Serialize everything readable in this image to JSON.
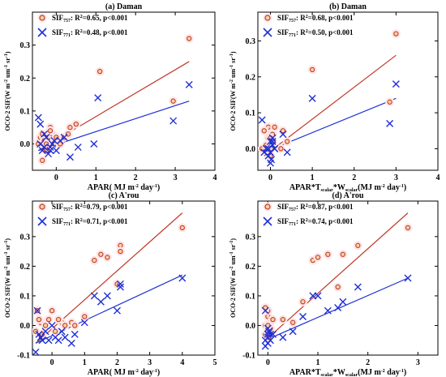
{
  "chart_data": [
    {
      "type": "scatter",
      "title": "(a) Daman",
      "xlabel": "APAR( MJ m⁻² day⁻¹)",
      "ylabel": "OCO-2 SIF(W m⁻² um⁻¹ sr⁻¹)",
      "xlim": [
        -0.6,
        4
      ],
      "ylim": [
        -0.08,
        0.4
      ],
      "xticks": [
        0,
        1,
        2,
        3,
        4
      ],
      "yticks": [
        0.0,
        0.1,
        0.2,
        0.3
      ],
      "legend_position": "top-left",
      "series": [
        {
          "name": "SIF757: R2=0.65, p<0.001",
          "marker": "circle",
          "color": "#c0392b",
          "x": [
            -0.45,
            -0.4,
            -0.35,
            -0.3,
            -0.25,
            -0.2,
            -0.15,
            -0.1,
            -0.05,
            0.0,
            -0.25,
            -0.15,
            0.2,
            0.35,
            0.5,
            0.3,
            1.1,
            2.95,
            3.35,
            0.1,
            -0.35
          ],
          "y": [
            0.0,
            0.02,
            0.03,
            0.01,
            0.0,
            0.02,
            0.05,
            0.03,
            0.0,
            0.02,
            -0.02,
            0.04,
            0.02,
            0.05,
            0.06,
            0.03,
            0.22,
            0.13,
            0.32,
            0.0,
            -0.05
          ],
          "fit": {
            "x": [
              -0.45,
              3.35
            ],
            "y": [
              -0.02,
              0.25
            ]
          }
        },
        {
          "name": "SIF771: R2=0.48, p<0.001",
          "marker": "x",
          "color": "#1f2fd6",
          "x": [
            -0.45,
            -0.4,
            -0.35,
            -0.3,
            -0.25,
            -0.2,
            -0.15,
            -0.1,
            -0.05,
            0.0,
            -0.3,
            -0.15,
            0.1,
            0.35,
            0.55,
            0.95,
            1.05,
            2.95,
            3.35,
            -0.4,
            0.2
          ],
          "y": [
            0.08,
            0.0,
            -0.02,
            -0.01,
            0.02,
            -0.03,
            -0.01,
            0.0,
            0.01,
            -0.02,
            0.03,
            -0.02,
            0.01,
            -0.04,
            -0.01,
            0.0,
            0.14,
            0.07,
            0.18,
            0.06,
            0.02
          ],
          "fit": {
            "x": [
              -0.45,
              3.35
            ],
            "y": [
              -0.02,
              0.13
            ]
          }
        }
      ]
    },
    {
      "type": "scatter",
      "title": "(b) Daman",
      "xlabel": "APAR*Tscalar*Wscalar(MJ m⁻² day⁻¹)",
      "ylabel": "OCO-2 SIF(W m⁻² um⁻¹ sr⁻¹)",
      "xlim": [
        -0.3,
        4
      ],
      "ylim": [
        -0.06,
        0.38
      ],
      "xticks": [
        0,
        1,
        2,
        3,
        4
      ],
      "yticks": [
        0.0,
        0.1,
        0.2,
        0.3
      ],
      "legend_position": "top-left",
      "series": [
        {
          "name": "SIF757: R2=0.68, p<0.001",
          "marker": "circle",
          "color": "#c0392b",
          "x": [
            -0.2,
            -0.1,
            -0.05,
            0.0,
            0.0,
            0.02,
            0.05,
            -0.05,
            0.0,
            0.05,
            0.1,
            0.3,
            0.4,
            0.25,
            1.0,
            2.85,
            3.0,
            -0.15,
            0.0
          ],
          "y": [
            0.0,
            0.01,
            0.03,
            0.02,
            0.05,
            0.0,
            0.04,
            0.06,
            -0.02,
            0.02,
            0.06,
            0.05,
            0.02,
            0.0,
            0.22,
            0.13,
            0.32,
            0.05,
            0.03
          ],
          "fit": {
            "x": [
              -0.15,
              3.0
            ],
            "y": [
              -0.02,
              0.26
            ]
          }
        },
        {
          "name": "SIF771: R2=0.50, p<0.001",
          "marker": "x",
          "color": "#1f2fd6",
          "x": [
            -0.2,
            -0.1,
            -0.05,
            0.0,
            0.0,
            0.02,
            0.05,
            -0.05,
            0.0,
            0.05,
            0.1,
            0.3,
            0.4,
            0.05,
            1.0,
            2.85,
            3.0,
            -0.15,
            0.1
          ],
          "y": [
            0.08,
            0.0,
            -0.02,
            0.02,
            -0.01,
            -0.03,
            0.01,
            0.0,
            -0.04,
            0.03,
            0.0,
            0.04,
            -0.01,
            0.02,
            0.14,
            0.07,
            0.18,
            -0.01,
            0.0
          ],
          "fit": {
            "x": [
              -0.15,
              3.0
            ],
            "y": [
              -0.01,
              0.14
            ]
          }
        }
      ]
    },
    {
      "type": "scatter",
      "title": "(c) A'rou",
      "xlabel": "APAR( MJ m⁻² day⁻¹)",
      "ylabel": "OCO-2 SIF(W m⁻² um⁻¹ sr⁻¹)",
      "xlim": [
        -0.6,
        5
      ],
      "ylim": [
        -0.1,
        0.42
      ],
      "xticks": [
        0,
        1,
        2,
        3,
        4,
        5
      ],
      "yticks": [
        -0.1,
        0.0,
        0.1,
        0.2,
        0.3
      ],
      "legend_position": "top-left",
      "series": [
        {
          "name": "SIF757: R2=0.79, p<0.001",
          "marker": "circle",
          "color": "#c0392b",
          "x": [
            -0.5,
            -0.45,
            -0.35,
            -0.3,
            -0.2,
            -0.1,
            0.0,
            0.1,
            0.3,
            0.4,
            0.6,
            0.7,
            1.0,
            1.3,
            1.5,
            1.7,
            2.0,
            2.1,
            2.1,
            4.0,
            -0.4,
            0.2
          ],
          "y": [
            -0.02,
            0.05,
            0.01,
            -0.03,
            0.0,
            0.02,
            0.05,
            -0.02,
            0.01,
            0.0,
            0.01,
            0.0,
            0.03,
            0.22,
            0.24,
            0.23,
            0.14,
            0.27,
            0.25,
            0.33,
            0.02,
            0.02
          ],
          "fit": {
            "x": [
              -0.5,
              4.0
            ],
            "y": [
              -0.06,
              0.38
            ]
          }
        },
        {
          "name": "SIF771: R2=0.71, p<0.001",
          "marker": "x",
          "color": "#1f2fd6",
          "x": [
            -0.5,
            -0.45,
            -0.35,
            -0.3,
            -0.2,
            -0.1,
            0.0,
            0.1,
            0.3,
            0.4,
            0.6,
            0.7,
            1.0,
            1.3,
            1.5,
            1.7,
            2.0,
            2.1,
            2.1,
            4.0,
            -0.4,
            0.2
          ],
          "y": [
            -0.09,
            0.05,
            -0.04,
            -0.05,
            -0.02,
            -0.05,
            0.0,
            -0.04,
            -0.02,
            -0.04,
            -0.06,
            -0.03,
            0.01,
            0.1,
            0.08,
            0.1,
            0.05,
            0.14,
            0.13,
            0.16,
            -0.03,
            -0.05
          ],
          "fit": {
            "x": [
              -0.5,
              4.0
            ],
            "y": [
              -0.06,
              0.17
            ]
          }
        }
      ]
    },
    {
      "type": "scatter",
      "title": "(d) A'rou",
      "xlabel": "APAR*Tscalar*Wscalar(MJ m⁻² day⁻¹)",
      "ylabel": "OCO-2 SIF(W m⁻² um⁻¹ sr⁻¹)",
      "xlim": [
        -0.2,
        3.4
      ],
      "ylim": [
        -0.1,
        0.42
      ],
      "xticks": [
        0,
        1,
        2,
        3
      ],
      "yticks": [
        -0.1,
        0.0,
        0.1,
        0.2,
        0.3
      ],
      "legend_position": "top-left",
      "series": [
        {
          "name": "SIF757: R2=0.87, p<0.001",
          "marker": "circle",
          "color": "#c0392b",
          "x": [
            -0.05,
            -0.05,
            0.0,
            0.0,
            0.0,
            0.02,
            0.05,
            0.05,
            0.1,
            0.3,
            0.5,
            0.7,
            0.9,
            1.0,
            1.2,
            1.4,
            1.5,
            1.8,
            2.8,
            -0.05,
            0.0
          ],
          "y": [
            -0.03,
            0.0,
            -0.02,
            0.03,
            0.05,
            -0.04,
            -0.01,
            0.01,
            0.02,
            0.02,
            0.01,
            0.08,
            0.22,
            0.23,
            0.24,
            0.13,
            0.24,
            0.27,
            0.33,
            0.06,
            0.0
          ],
          "fit": {
            "x": [
              -0.05,
              2.8
            ],
            "y": [
              -0.05,
              0.38
            ]
          }
        },
        {
          "name": "SIF771: R2=0.74, p<0.001",
          "marker": "x",
          "color": "#1f2fd6",
          "x": [
            -0.05,
            -0.05,
            0.0,
            0.0,
            0.0,
            0.02,
            0.05,
            0.05,
            0.1,
            0.3,
            0.5,
            0.7,
            0.9,
            1.0,
            1.2,
            1.4,
            1.5,
            1.8,
            2.8,
            -0.05,
            0.0
          ],
          "y": [
            0.05,
            -0.05,
            -0.03,
            -0.06,
            -0.04,
            -0.02,
            -0.05,
            -0.03,
            -0.03,
            -0.04,
            -0.02,
            0.03,
            0.1,
            0.1,
            0.05,
            0.06,
            0.08,
            0.13,
            0.16,
            -0.07,
            -0.01
          ],
          "fit": {
            "x": [
              -0.05,
              2.8
            ],
            "y": [
              -0.05,
              0.16
            ]
          }
        }
      ]
    }
  ]
}
